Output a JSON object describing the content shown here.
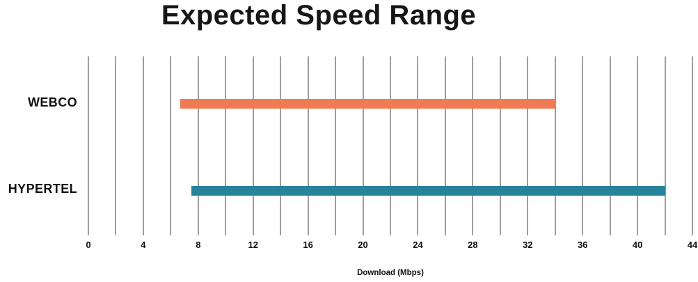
{
  "chart_data": {
    "type": "bar",
    "subtype": "horizontal_range_bar",
    "title": "Expected Speed Range",
    "xlabel": "Download (Mbps)",
    "categories": [
      "WEBCO",
      "HYPERTEL"
    ],
    "series": [
      {
        "name": "WEBCO",
        "range_start": 6.7,
        "range_end": 34,
        "color": "#EF7B55"
      },
      {
        "name": "HYPERTEL",
        "range_start": 7.5,
        "range_end": 42,
        "color": "#27839A"
      }
    ],
    "x_axis": {
      "min": 0,
      "max": 44,
      "tick_step": 4,
      "gridline_step": 2,
      "tick_labels": [
        "0",
        "4",
        "8",
        "12",
        "16",
        "20",
        "24",
        "28",
        "32",
        "36",
        "40",
        "44"
      ]
    },
    "grid": true,
    "gridline_color": "#A09D9A",
    "legend": "none",
    "background_color": "#FFFFFF",
    "text_color": "#111111"
  }
}
